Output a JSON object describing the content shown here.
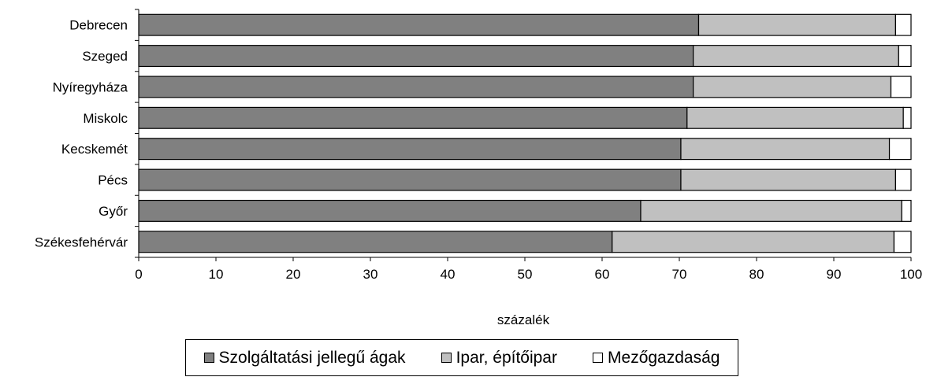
{
  "chart_data": {
    "type": "bar",
    "orientation": "horizontal",
    "stacked": true,
    "categories": [
      "Debrecen",
      "Szeged",
      "Nyíregyháza",
      "Miskolc",
      "Kecskemét",
      "Pécs",
      "Győr",
      "Székesfehérvár"
    ],
    "series": [
      {
        "name": "Szolgáltatási jellegű ágak",
        "color": "#808080",
        "values": [
          72.5,
          71.8,
          71.8,
          71.0,
          70.2,
          70.2,
          65.0,
          61.3
        ]
      },
      {
        "name": "Ipar, építőipar",
        "color": "#c0c0c0",
        "values": [
          25.5,
          26.6,
          25.6,
          28.0,
          27.0,
          27.8,
          33.8,
          36.5
        ]
      },
      {
        "name": "Mezőgazdaság",
        "color": "#ffffff",
        "values": [
          2.0,
          1.6,
          2.6,
          1.0,
          2.8,
          2.0,
          1.2,
          2.2
        ]
      }
    ],
    "xlim": [
      0,
      100
    ],
    "xticks": [
      "0",
      "10",
      "20",
      "30",
      "40",
      "50",
      "60",
      "70",
      "80",
      "90",
      "100"
    ],
    "xlabel": "százalék",
    "ylabel": "",
    "grid": false,
    "legend_position": "bottom"
  }
}
